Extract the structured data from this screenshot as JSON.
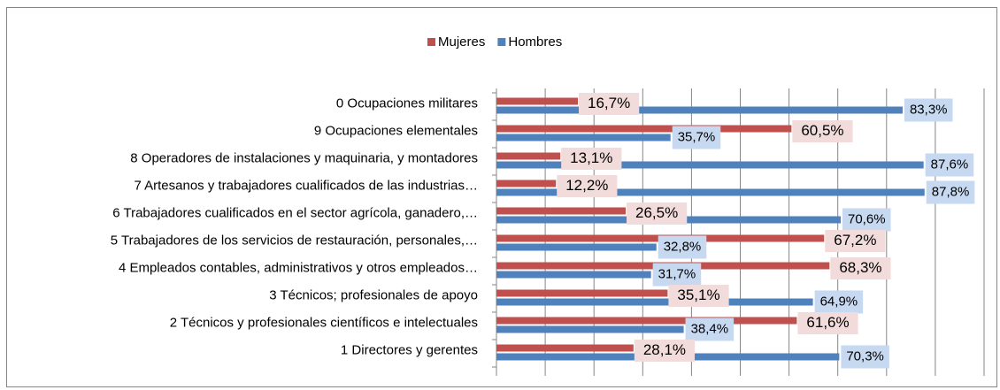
{
  "chart_data": {
    "type": "bar",
    "orientation": "horizontal",
    "categories": [
      "0 Ocupaciones militares",
      "9 Ocupaciones elementales",
      "8 Operadores de instalaciones y maquinaria, y montadores",
      "7 Artesanos y trabajadores cualificados de las industrias…",
      "6 Trabajadores cualificados en el sector agrícola, ganadero,…",
      "5 Trabajadores de los servicios de restauración, personales,…",
      "4 Empleados contables, administrativos y otros empleados…",
      "3 Técnicos; profesionales de apoyo",
      "2 Técnicos y profesionales científicos e intelectuales",
      "1 Directores y gerentes"
    ],
    "series": [
      {
        "name": "Mujeres",
        "color": "#c0504d",
        "label_bg": "#f2dcdb",
        "values": [
          16.7,
          60.5,
          13.1,
          12.2,
          26.5,
          67.2,
          68.3,
          35.1,
          61.6,
          28.1
        ],
        "value_labels": [
          "16,7%",
          "60,5%",
          "13,1%",
          "12,2%",
          "26,5%",
          "67,2%",
          "68,3%",
          "35,1%",
          "61,6%",
          "28,1%"
        ]
      },
      {
        "name": "Hombres",
        "color": "#4f81bd",
        "label_bg": "#c6d9f1",
        "values": [
          83.3,
          35.7,
          87.6,
          87.8,
          70.6,
          32.8,
          31.7,
          64.9,
          38.4,
          70.3
        ],
        "value_labels": [
          "83,3%",
          "35,7%",
          "87,6%",
          "87,8%",
          "70,6%",
          "32,8%",
          "31,7%",
          "64,9%",
          "38,4%",
          "70,3%"
        ]
      }
    ],
    "xlim": [
      0,
      100
    ],
    "xticks": [
      0,
      10,
      20,
      30,
      40,
      50,
      60,
      70,
      80,
      90,
      100
    ],
    "grid": true,
    "legend": "top"
  }
}
